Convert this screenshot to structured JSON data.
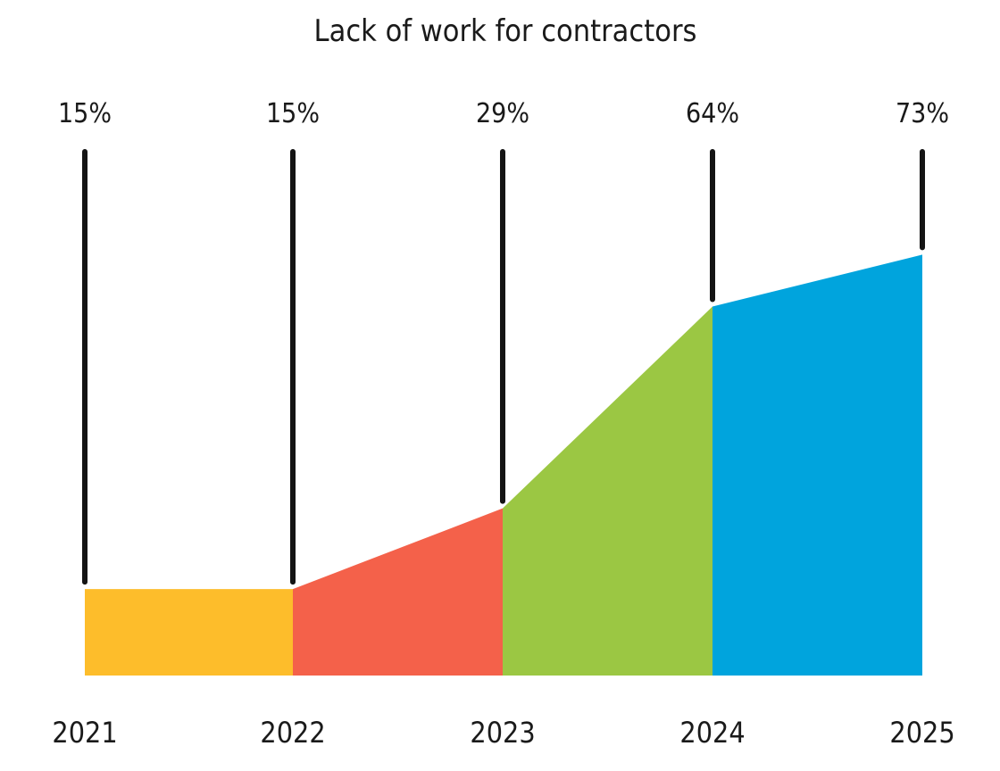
{
  "chart_data": {
    "type": "area",
    "title": "Lack of work for contractors",
    "x": [
      "2021",
      "2022",
      "2023",
      "2024",
      "2025"
    ],
    "values": [
      15,
      15,
      29,
      64,
      73
    ],
    "value_labels": [
      "15%",
      "15%",
      "29%",
      "64%",
      "73%"
    ],
    "unit": "%",
    "segment_colors": [
      "#fdbd2b",
      "#f4614a",
      "#9bc743",
      "#00a4dd"
    ],
    "line_color": "#141414",
    "grid": false,
    "legend": "none"
  }
}
